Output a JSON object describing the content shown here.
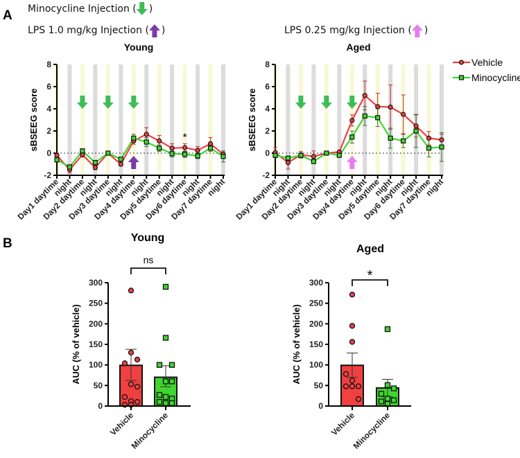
{
  "panel_labels": {
    "a": "A",
    "b": "B"
  },
  "header": {
    "minocycline_injection": "Minocycline Injection (",
    "lps_high": "LPS 1.0 mg/kg Injection (",
    "lps_low": "LPS 0.25 mg/kg Injection (",
    "close_paren": ")"
  },
  "colors": {
    "vehicle": "#f04040",
    "minocycline": "#3fd630",
    "mino_arrow": "#3dbd55",
    "lps_high_arrow": "#7b3aa8",
    "lps_low_arrow": "#e77ef0",
    "day_band": "#f8f8d8",
    "night_band": "#dcdcdc"
  },
  "chart_data": [
    {
      "type": "line",
      "title": "Young",
      "ylabel": "sBSEEG score",
      "ylim": [
        -2,
        8
      ],
      "yticks": [
        -2,
        0,
        2,
        4,
        6,
        8
      ],
      "categories": [
        "Day1 daytime",
        "night",
        "Day2 daytime",
        "night",
        "Day3 daytime",
        "night",
        "Day4 daytime",
        "night",
        "Day5 daytime",
        "night",
        "Day6 daytime",
        "night",
        "Day7 daytime",
        "night"
      ],
      "series": [
        {
          "name": "Vehicle",
          "values": [
            -0.2,
            -1.5,
            -0.15,
            -1.3,
            0,
            -1.0,
            1.1,
            1.7,
            1.1,
            0.45,
            0.5,
            0.25,
            0.85,
            -0.1
          ],
          "sem": [
            0.2,
            0.3,
            0.2,
            0.2,
            0.1,
            0.15,
            0.3,
            0.6,
            0.5,
            0.4,
            0.35,
            0.35,
            0.55,
            0.3
          ]
        },
        {
          "name": "Minocycline",
          "values": [
            -0.6,
            -1.25,
            0.2,
            -0.85,
            0,
            -0.55,
            1.35,
            1.0,
            0.45,
            -0.05,
            -0.1,
            -0.25,
            0.45,
            -0.3
          ],
          "sem": [
            0.2,
            0.2,
            0.2,
            0.2,
            0.1,
            0.15,
            0.35,
            0.4,
            0.3,
            0.3,
            0.3,
            0.25,
            0.3,
            0.5
          ]
        }
      ],
      "minocycline_arrows_at": [
        2,
        4,
        6
      ],
      "lps_arrow_at": 6,
      "lps_arrow": "lps_high",
      "annotations": [
        {
          "text": "*",
          "index": 10
        }
      ]
    },
    {
      "type": "line",
      "title": "Aged",
      "ylabel": "sBSEEG score",
      "ylim": [
        -2,
        8
      ],
      "yticks": [
        -2,
        0,
        2,
        4,
        6,
        8
      ],
      "categories": [
        "Day1 daytime",
        "night",
        "Day2 daytime",
        "night",
        "Day3 daytime",
        "night",
        "Day4 daytime",
        "night",
        "Day5 daytime",
        "night",
        "Day6 daytime",
        "night",
        "Day7 daytime",
        "night"
      ],
      "series": [
        {
          "name": "Vehicle",
          "values": [
            0.05,
            -0.85,
            -0.15,
            -0.3,
            0,
            0.1,
            2.95,
            5.2,
            4.2,
            4.15,
            3.5,
            2.45,
            1.35,
            1.2
          ],
          "sem": [
            0.45,
            0.6,
            0.3,
            0.5,
            0.05,
            0.1,
            0.5,
            1.3,
            1.2,
            2.0,
            1.75,
            1.0,
            0.6,
            0.5
          ]
        },
        {
          "name": "Minocycline",
          "values": [
            -0.2,
            -0.45,
            -0.2,
            -0.75,
            0,
            -0.2,
            1.45,
            3.35,
            3.2,
            1.35,
            1.1,
            2.0,
            0.45,
            0.55
          ],
          "sem": [
            0.2,
            0.2,
            0.2,
            0.2,
            0.05,
            0.1,
            0.55,
            0.85,
            0.8,
            0.9,
            0.6,
            1.5,
            0.8,
            1.3
          ]
        }
      ],
      "minocycline_arrows_at": [
        2,
        4,
        6
      ],
      "lps_arrow_at": 6,
      "lps_arrow": "lps_low",
      "legend": {
        "position": "top-right",
        "entries": [
          "Vehicle",
          "Minocycline"
        ]
      },
      "annotations": []
    },
    {
      "type": "bar",
      "title": "Young",
      "ylabel": "AUC (% of vehicle)",
      "ylim": [
        0,
        300
      ],
      "yticks": [
        0,
        50,
        100,
        150,
        200,
        250,
        300
      ],
      "categories": [
        "Vehicle",
        "Minocycline"
      ],
      "values": [
        99,
        70
      ],
      "sem_upper": [
        138,
        98
      ],
      "sem_lower": [
        62,
        47
      ],
      "points": [
        [
          281,
          130,
          113,
          104,
          53,
          47,
          22,
          12,
          10,
          3,
          3
        ],
        [
          290,
          166,
          100,
          100,
          60,
          60,
          27,
          22,
          18,
          10,
          7,
          7
        ]
      ],
      "significance": "ns"
    },
    {
      "type": "bar",
      "title": "Aged",
      "ylabel": "AUC (% of vehicle)",
      "ylim": [
        0,
        300
      ],
      "yticks": [
        0,
        50,
        100,
        150,
        200,
        250,
        300
      ],
      "categories": [
        "Vehicle",
        "Minocycline"
      ],
      "values": [
        99,
        44
      ],
      "sem_upper": [
        129,
        65
      ],
      "sem_lower": [
        70,
        22
      ],
      "points": [
        [
          271,
          195,
          156,
          78,
          62,
          48,
          48,
          48,
          17
        ],
        [
          187,
          51,
          43,
          30,
          18,
          14,
          11,
          5
        ]
      ],
      "significance": "*"
    }
  ]
}
